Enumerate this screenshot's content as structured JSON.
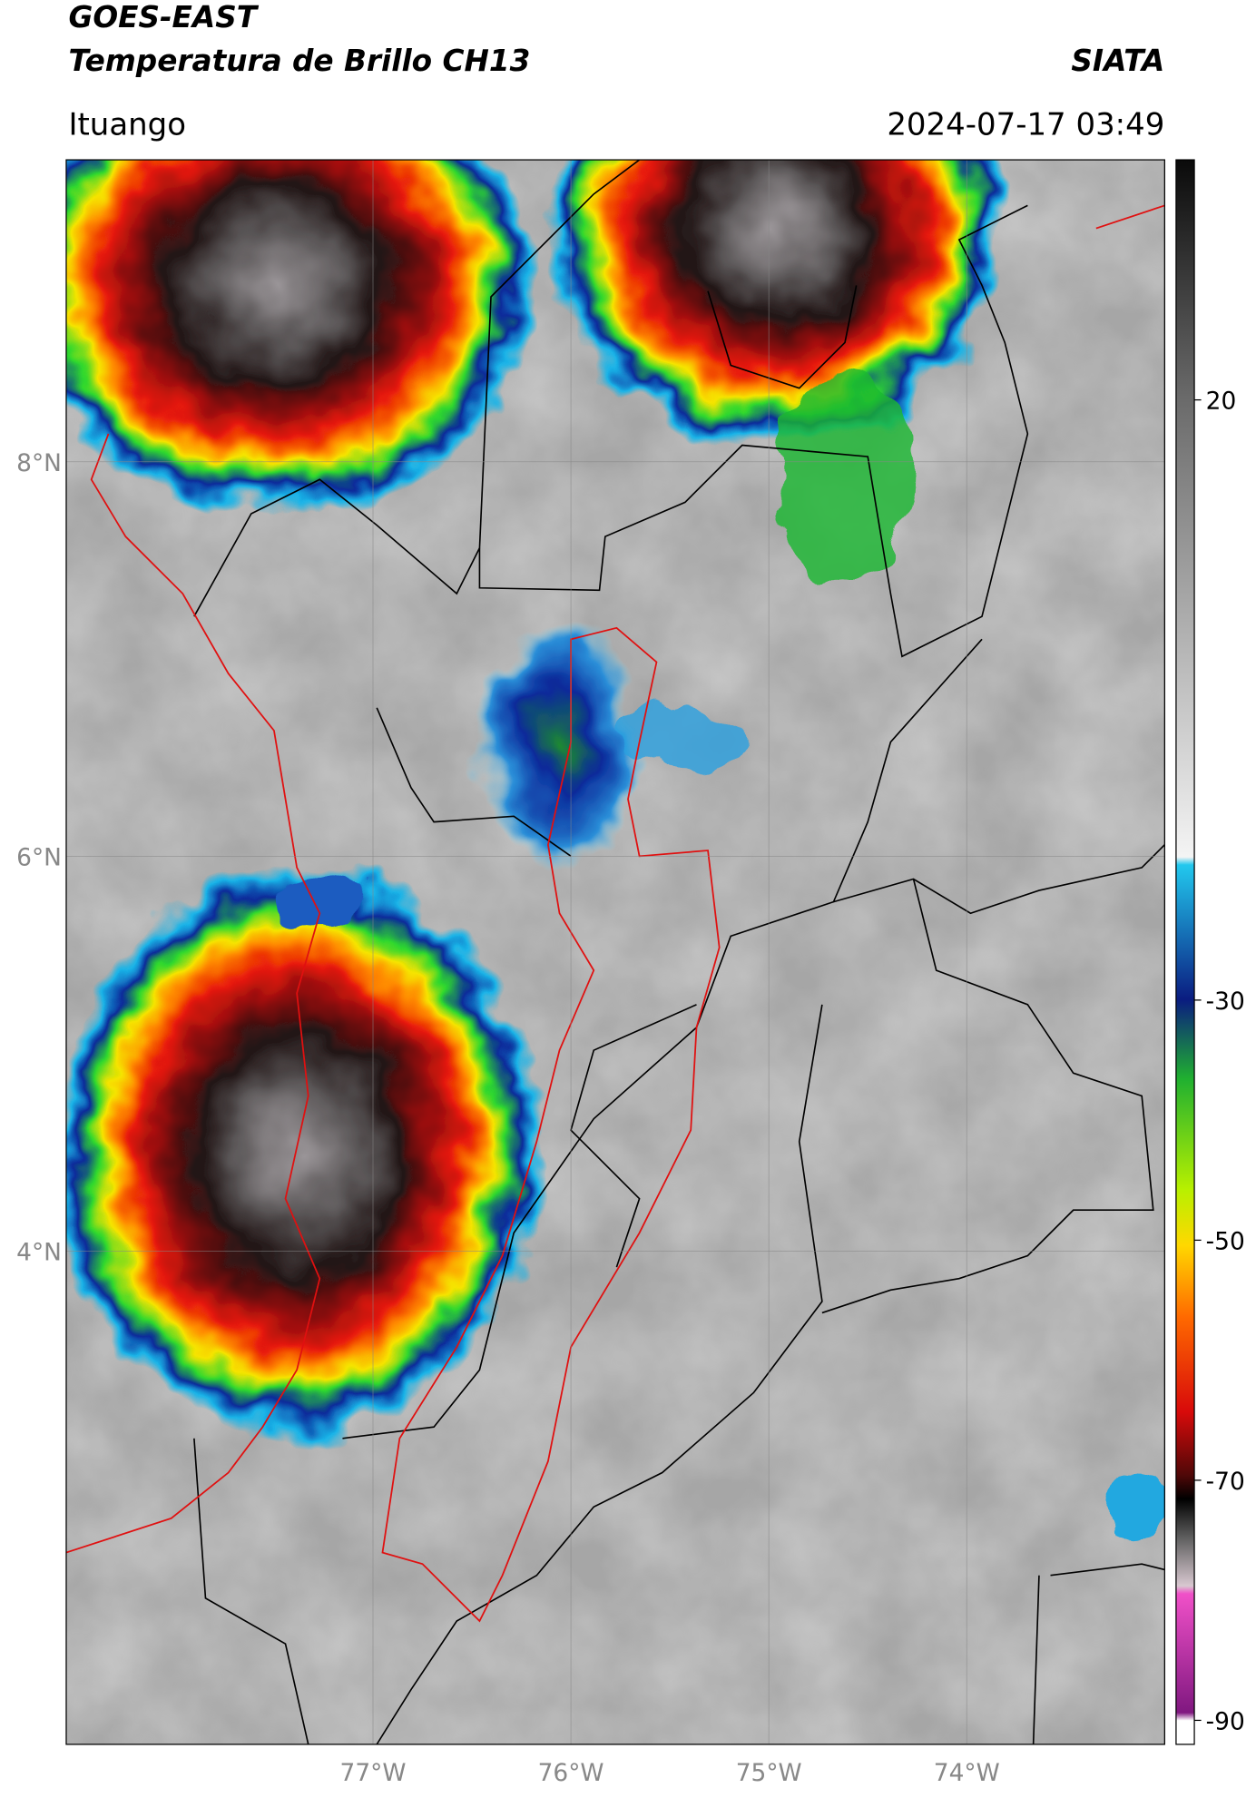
{
  "header": {
    "title": "GOES-EAST",
    "subtitle": "Temperatura de Brillo CH13",
    "source": "SIATA",
    "location": "Ituango",
    "timestamp": "2024-07-17 03:49"
  },
  "map": {
    "xlim": [
      -78.55,
      -73.0
    ],
    "ylim": [
      1.5,
      9.53
    ],
    "xticks": [
      {
        "value": -77,
        "label": "77°W"
      },
      {
        "value": -76,
        "label": "76°W"
      },
      {
        "value": -75,
        "label": "75°W"
      },
      {
        "value": -74,
        "label": "74°W"
      }
    ],
    "yticks": [
      {
        "value": 8,
        "label": "8°N"
      },
      {
        "value": 6,
        "label": "6°N"
      },
      {
        "value": 4,
        "label": "4°N"
      }
    ]
  },
  "colorbar": {
    "clim": [
      -92,
      40
    ],
    "ticks": [
      20,
      -30,
      -50,
      -70,
      -90
    ]
  }
}
